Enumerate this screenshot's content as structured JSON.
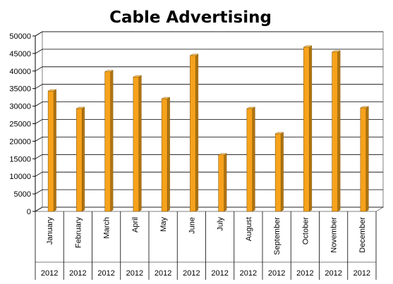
{
  "chart_data": {
    "type": "bar",
    "title": "Cable Advertising",
    "categories": [
      "January",
      "February",
      "March",
      "April",
      "May",
      "June",
      "July",
      "August",
      "September",
      "October",
      "November",
      "December"
    ],
    "group_labels": [
      "2012",
      "2012",
      "2012",
      "2012",
      "2012",
      "2012",
      "2012",
      "2012",
      "2012",
      "2012",
      "2012",
      "2012"
    ],
    "values": [
      34300,
      29300,
      39800,
      38300,
      32100,
      44400,
      16100,
      29300,
      22100,
      46800,
      45400,
      29500
    ],
    "ylim": [
      0,
      50000
    ],
    "yticks": [
      0,
      5000,
      10000,
      15000,
      20000,
      25000,
      30000,
      35000,
      40000,
      45000,
      50000
    ],
    "xlabel": "",
    "ylabel": "",
    "grid": true,
    "bar_style": "3d",
    "colors": {
      "bar_front": "#F7A21B",
      "bar_side": "#B07410",
      "bar_top": "#FBC868",
      "gridline": "#000000",
      "back_wall": "#ffffff"
    }
  }
}
